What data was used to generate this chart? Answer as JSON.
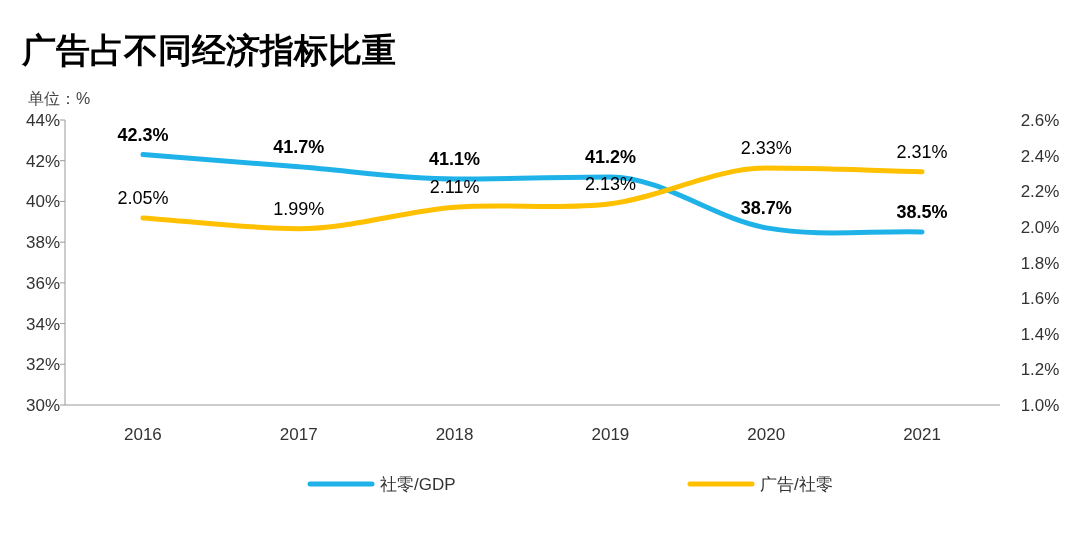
{
  "chart_data": {
    "type": "line",
    "title": "广告占不同经济指标比重",
    "ylabel": "单位：%",
    "categories": [
      "2016",
      "2017",
      "2018",
      "2019",
      "2020",
      "2021"
    ],
    "series": [
      {
        "name": "社零/GDP",
        "color": "#1fb2e8",
        "values": [
          42.3,
          41.7,
          41.1,
          41.2,
          38.7,
          38.5
        ],
        "value_labels": [
          "42.3%",
          "41.7%",
          "41.1%",
          "41.2%",
          "38.7%",
          "38.5%"
        ]
      },
      {
        "name": "广告/社零",
        "color": "#ffc000",
        "axis": "y2",
        "values": [
          2.05,
          1.99,
          2.11,
          2.13,
          2.33,
          2.31
        ],
        "value_labels": [
          "2.05%",
          "1.99%",
          "2.11%",
          "2.13%",
          "2.33%",
          "2.31%"
        ]
      }
    ],
    "ylim": [
      30,
      44
    ],
    "yticks": [
      {
        "value": 30,
        "label": "30%"
      },
      {
        "value": 32,
        "label": "32%"
      },
      {
        "value": 34,
        "label": "34%"
      },
      {
        "value": 36,
        "label": "36%"
      },
      {
        "value": 38,
        "label": "38%"
      },
      {
        "value": 40,
        "label": "40%"
      },
      {
        "value": 42,
        "label": "42%"
      },
      {
        "value": 44,
        "label": "44%"
      }
    ],
    "y2lim": [
      1.0,
      2.6
    ],
    "y2ticks": [
      {
        "value": 1.0,
        "label": "1.0%"
      },
      {
        "value": 1.2,
        "label": "1.2%"
      },
      {
        "value": 1.4,
        "label": "1.4%"
      },
      {
        "value": 1.6,
        "label": "1.6%"
      },
      {
        "value": 1.8,
        "label": "1.8%"
      },
      {
        "value": 2.0,
        "label": "2.0%"
      },
      {
        "value": 2.2,
        "label": "2.2%"
      },
      {
        "value": 2.4,
        "label": "2.4%"
      },
      {
        "value": 2.6,
        "label": "2.6%"
      }
    ],
    "legend": "bottom"
  }
}
